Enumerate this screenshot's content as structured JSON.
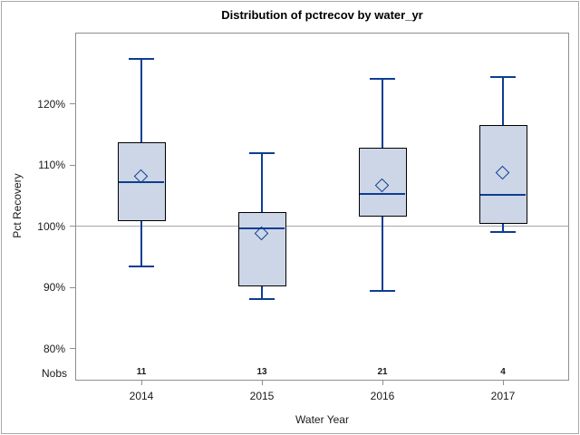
{
  "chart_data": {
    "type": "box",
    "title": "Distribution of pctrecov by water_yr",
    "xlabel": "Water Year",
    "ylabel": "Pct Recovery",
    "categories": [
      "2014",
      "2015",
      "2016",
      "2017"
    ],
    "nobs_row": {
      "label": "Nobs",
      "values": [
        11,
        13,
        21,
        4
      ]
    },
    "y_ticks": [
      {
        "value": 80,
        "label": "80%"
      },
      {
        "value": 90,
        "label": "90%"
      },
      {
        "value": 100,
        "label": "100%"
      },
      {
        "value": 110,
        "label": "110%"
      },
      {
        "value": 120,
        "label": "120%"
      }
    ],
    "ylim": [
      74.8,
      131.7
    ],
    "reference_line": 100,
    "grid": false,
    "legend": "none",
    "series": [
      {
        "category": "2014",
        "whisker_low": 93.4,
        "q1": 100.9,
        "median": 107.2,
        "mean": 108.1,
        "q3": 113.7,
        "whisker_high": 127.4
      },
      {
        "category": "2015",
        "whisker_low": 88.1,
        "q1": 90.2,
        "median": 99.7,
        "mean": 98.7,
        "q3": 102.3,
        "whisker_high": 112.0
      },
      {
        "category": "2016",
        "whisker_low": 89.5,
        "q1": 101.6,
        "median": 105.3,
        "mean": 106.6,
        "q3": 112.9,
        "whisker_high": 124.2
      },
      {
        "category": "2017",
        "whisker_low": 99.1,
        "q1": 100.4,
        "median": 105.2,
        "mean": 108.7,
        "q3": 116.6,
        "whisker_high": 124.5
      }
    ],
    "colors": {
      "box_fill": "#cdd6e6",
      "box_border": "#000000",
      "line_blue": "#0e3d93",
      "reference_line": "#a6a6a6",
      "plot_frame": "#8f8f8f",
      "outer_frame": "#a9a9a9",
      "text": "#1a1a1a"
    }
  }
}
